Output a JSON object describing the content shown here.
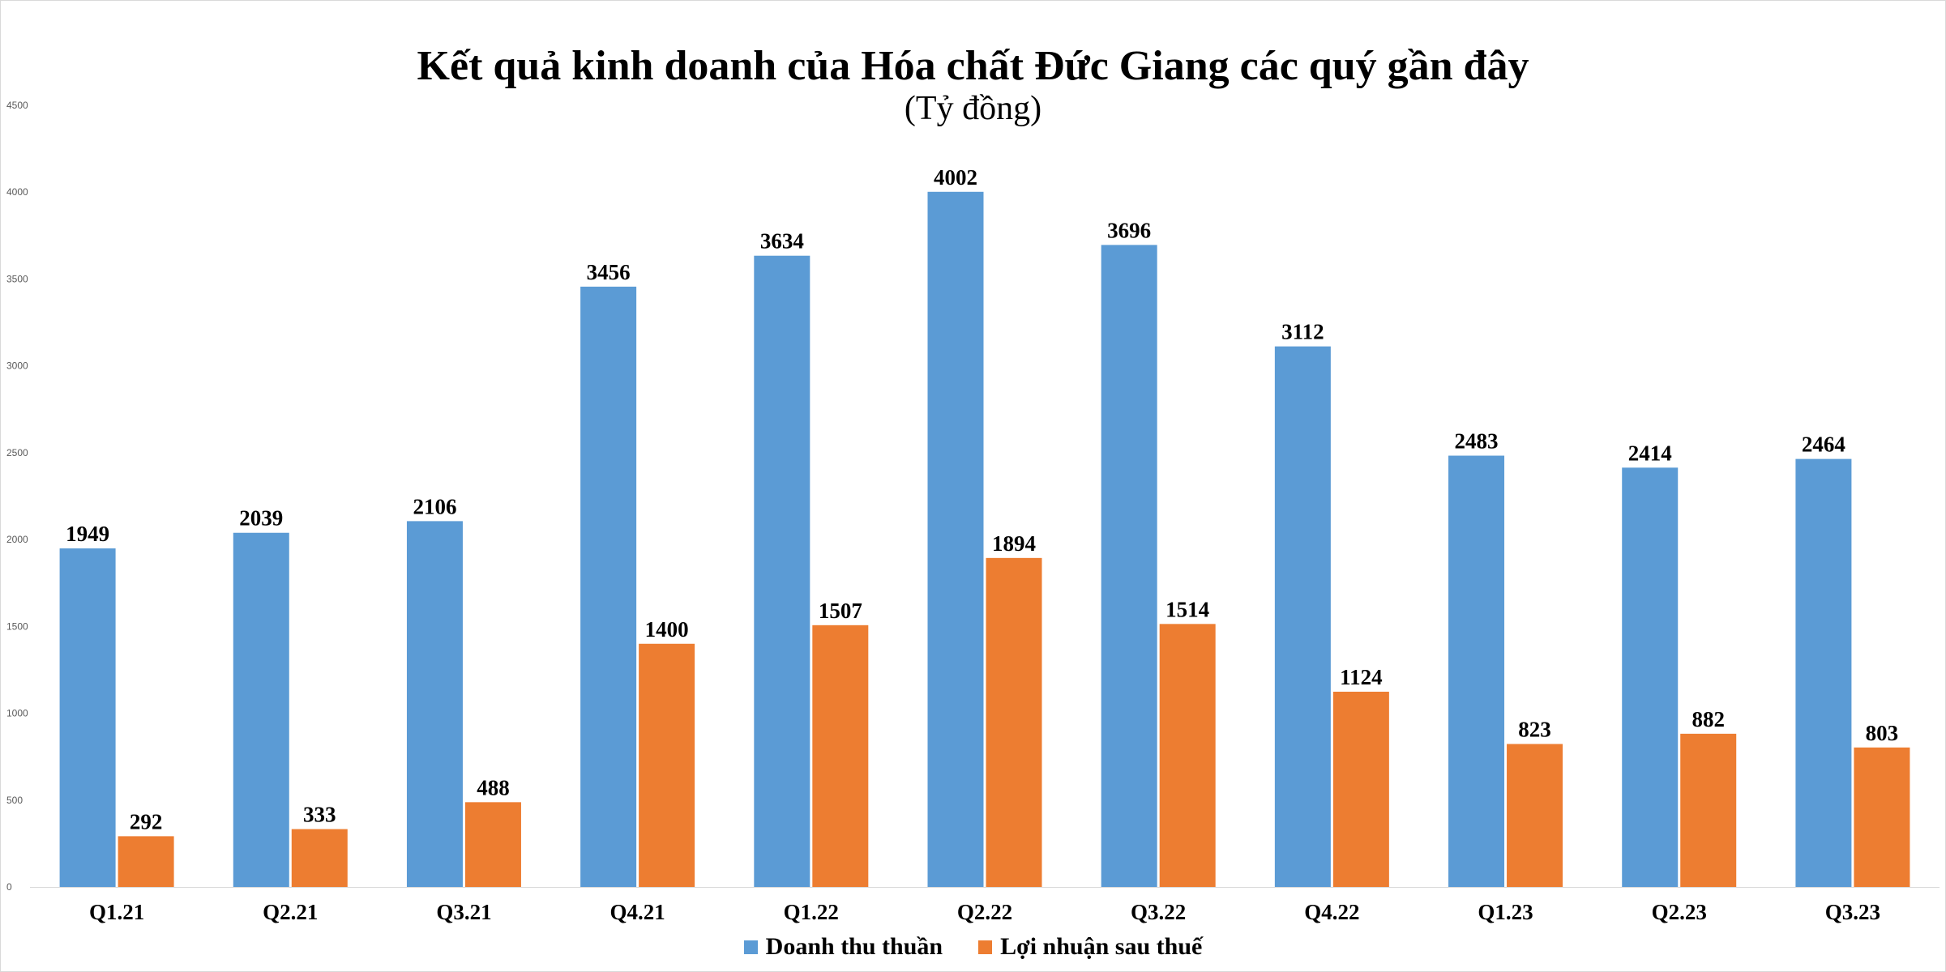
{
  "chart_data": {
    "type": "bar",
    "title": "Kết quả kinh doanh của Hóa chất Đức Giang các quý gần đây",
    "subtitle": "(Tỷ đồng)",
    "categories": [
      "Q1.21",
      "Q2.21",
      "Q3.21",
      "Q4.21",
      "Q1.22",
      "Q2.22",
      "Q3.22",
      "Q4.22",
      "Q1.23",
      "Q2.23",
      "Q3.23"
    ],
    "series": [
      {
        "name": "Doanh thu thuần",
        "color": "#5b9bd5",
        "values": [
          1949,
          2039,
          2106,
          3456,
          3634,
          4002,
          3696,
          3112,
          2483,
          2414,
          2464
        ]
      },
      {
        "name": "Lợi nhuận sau thuế",
        "color": "#ed7d31",
        "values": [
          292,
          333,
          488,
          1400,
          1507,
          1894,
          1514,
          1124,
          823,
          882,
          803
        ]
      }
    ],
    "ylim": [
      0,
      4500
    ],
    "yticks": [
      0,
      500,
      1000,
      1500,
      2000,
      2500,
      3000,
      3500,
      4000,
      4500
    ],
    "grid": false,
    "legend_position": "bottom"
  }
}
